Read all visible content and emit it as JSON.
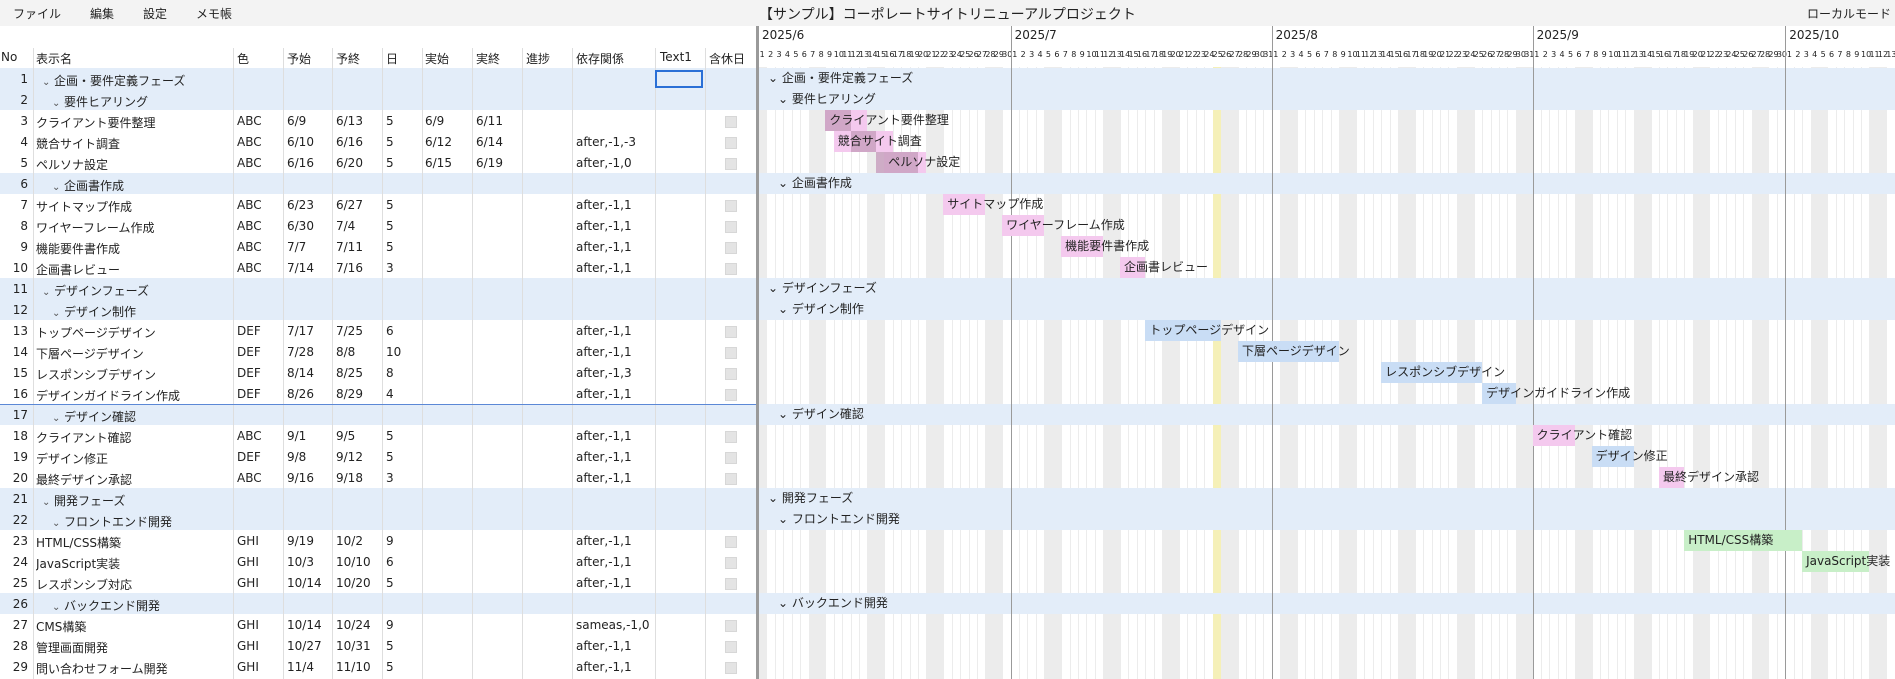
{
  "menu": [
    "ファイル",
    "編集",
    "設定",
    "メモ帳"
  ],
  "app_title": "【サンプル】コーポレートサイトリニューアルプロジェクト",
  "mode_label": "ローカルモード",
  "columns": [
    "No",
    "表示名",
    "色",
    "予始",
    "予終",
    "日",
    "実始",
    "実終",
    "進捗",
    "依存関係",
    "Text1",
    "含休日"
  ],
  "months": [
    "2025/6",
    "2025/7",
    "2025/8",
    "2025/9",
    "2025/10"
  ],
  "rows": [
    {
      "no": "1",
      "name": "企画・要件定義フェーズ",
      "level": 1,
      "group": true
    },
    {
      "no": "2",
      "name": "要件ヒアリング",
      "level": 2,
      "group": true
    },
    {
      "no": "3",
      "name": "クライアント要件整理",
      "color": "ABC",
      "ps": "6/9",
      "pe": "6/13",
      "days": "5",
      "as": "6/9",
      "ae": "6/11",
      "dep": ""
    },
    {
      "no": "4",
      "name": "競合サイト調査",
      "color": "ABC",
      "ps": "6/10",
      "pe": "6/16",
      "days": "5",
      "as": "6/12",
      "ae": "6/14",
      "dep": "after,-1,-3"
    },
    {
      "no": "5",
      "name": "ペルソナ設定",
      "color": "ABC",
      "ps": "6/16",
      "pe": "6/20",
      "days": "5",
      "as": "6/15",
      "ae": "6/19",
      "dep": "after,-1,0"
    },
    {
      "no": "6",
      "name": "企画書作成",
      "level": 2,
      "group": true
    },
    {
      "no": "7",
      "name": "サイトマップ作成",
      "color": "ABC",
      "ps": "6/23",
      "pe": "6/27",
      "days": "5",
      "as": "",
      "ae": "",
      "dep": "after,-1,1"
    },
    {
      "no": "8",
      "name": "ワイヤーフレーム作成",
      "color": "ABC",
      "ps": "6/30",
      "pe": "7/4",
      "days": "5",
      "as": "",
      "ae": "",
      "dep": "after,-1,1"
    },
    {
      "no": "9",
      "name": "機能要件書作成",
      "color": "ABC",
      "ps": "7/7",
      "pe": "7/11",
      "days": "5",
      "as": "",
      "ae": "",
      "dep": "after,-1,1"
    },
    {
      "no": "10",
      "name": "企画書レビュー",
      "color": "ABC",
      "ps": "7/14",
      "pe": "7/16",
      "days": "3",
      "as": "",
      "ae": "",
      "dep": "after,-1,1"
    },
    {
      "no": "11",
      "name": "デザインフェーズ",
      "level": 1,
      "group": true
    },
    {
      "no": "12",
      "name": "デザイン制作",
      "level": 2,
      "group": true
    },
    {
      "no": "13",
      "name": "トップページデザイン",
      "color": "DEF",
      "ps": "7/17",
      "pe": "7/25",
      "days": "6",
      "as": "",
      "ae": "",
      "dep": "after,-1,1"
    },
    {
      "no": "14",
      "name": "下層ページデザイン",
      "color": "DEF",
      "ps": "7/28",
      "pe": "8/8",
      "days": "10",
      "as": "",
      "ae": "",
      "dep": "after,-1,1"
    },
    {
      "no": "15",
      "name": "レスポンシブデザイン",
      "color": "DEF",
      "ps": "8/14",
      "pe": "8/25",
      "days": "8",
      "as": "",
      "ae": "",
      "dep": "after,-1,3"
    },
    {
      "no": "16",
      "name": "デザインガイドライン作成",
      "color": "DEF",
      "ps": "8/26",
      "pe": "8/29",
      "days": "4",
      "as": "",
      "ae": "",
      "dep": "after,-1,1"
    },
    {
      "no": "17",
      "name": "デザイン確認",
      "level": 2,
      "group": true
    },
    {
      "no": "18",
      "name": "クライアント確認",
      "color": "ABC",
      "ps": "9/1",
      "pe": "9/5",
      "days": "5",
      "as": "",
      "ae": "",
      "dep": "after,-1,1"
    },
    {
      "no": "19",
      "name": "デザイン修正",
      "color": "DEF",
      "ps": "9/8",
      "pe": "9/12",
      "days": "5",
      "as": "",
      "ae": "",
      "dep": "after,-1,1"
    },
    {
      "no": "20",
      "name": "最終デザイン承認",
      "color": "ABC",
      "ps": "9/16",
      "pe": "9/18",
      "days": "3",
      "as": "",
      "ae": "",
      "dep": "after,-1,1"
    },
    {
      "no": "21",
      "name": "開発フェーズ",
      "level": 1,
      "group": true
    },
    {
      "no": "22",
      "name": "フロントエンド開発",
      "level": 2,
      "group": true
    },
    {
      "no": "23",
      "name": "HTML/CSS構築",
      "color": "GHI",
      "ps": "9/19",
      "pe": "10/2",
      "days": "9",
      "as": "",
      "ae": "",
      "dep": "after,-1,1"
    },
    {
      "no": "24",
      "name": "JavaScript実装",
      "color": "GHI",
      "ps": "10/3",
      "pe": "10/10",
      "days": "6",
      "as": "",
      "ae": "",
      "dep": "after,-1,1"
    },
    {
      "no": "25",
      "name": "レスポンシブ対応",
      "color": "GHI",
      "ps": "10/14",
      "pe": "10/20",
      "days": "5",
      "as": "",
      "ae": "",
      "dep": "after,-1,1"
    },
    {
      "no": "26",
      "name": "バックエンド開発",
      "level": 2,
      "group": true
    },
    {
      "no": "27",
      "name": "CMS構築",
      "color": "GHI",
      "ps": "10/14",
      "pe": "10/24",
      "days": "9",
      "as": "",
      "ae": "",
      "dep": "sameas,-1,0"
    },
    {
      "no": "28",
      "name": "管理画面開発",
      "color": "GHI",
      "ps": "10/27",
      "pe": "10/31",
      "days": "5",
      "as": "",
      "ae": "",
      "dep": "after,-1,1"
    },
    {
      "no": "29",
      "name": "問い合わせフォーム開発",
      "color": "GHI",
      "ps": "11/4",
      "pe": "11/10",
      "days": "5",
      "as": "",
      "ae": "",
      "dep": "after,-1,1"
    }
  ],
  "palette": {
    "ABC": "#f4c9ee",
    "DEF": "#c9ddf5",
    "GHI": "#c8efc8",
    "actual": "#c9a1c0",
    "group_band": "#e3edf9",
    "today": "#f5f0b8"
  }
}
